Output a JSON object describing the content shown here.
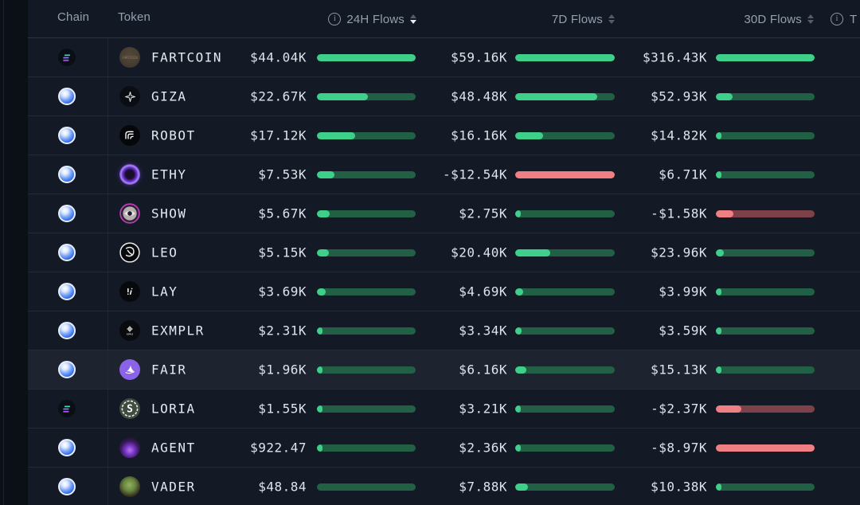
{
  "header": {
    "chain_label": "Chain",
    "token_label": "Token",
    "flows_24h_label": "24H Flows",
    "flows_7d_label": "7D Flows",
    "flows_30d_label": "30D Flows",
    "right_partial_label": "T",
    "sort_active_column": "24H Flows",
    "sort_direction": "desc"
  },
  "icons": {
    "info_glyph": "i"
  },
  "colors": {
    "positive_fill": "#3ecf8a",
    "positive_track": "#216044",
    "negative_fill": "#ef7f82",
    "negative_track": "#7c4149",
    "row_background": "#131a25",
    "row_highlight": "#1d2430",
    "header_text": "#94a0ae",
    "value_text": "#dde4ec"
  },
  "rows": [
    {
      "chain_icon": "solana",
      "token": "FARTCOIN",
      "token_icon": "fartcoin",
      "highlighted": false,
      "flows_24h": {
        "value": "$44.04K",
        "pct": 100,
        "negative": false
      },
      "flows_7d": {
        "value": "$59.16K",
        "pct": 100,
        "negative": false
      },
      "flows_30d": {
        "value": "$316.43K",
        "pct": 100,
        "negative": false
      }
    },
    {
      "chain_icon": "blue-sphere",
      "token": "GIZA",
      "token_icon": "giza",
      "highlighted": false,
      "flows_24h": {
        "value": "$22.67K",
        "pct": 52,
        "negative": false
      },
      "flows_7d": {
        "value": "$48.48K",
        "pct": 82,
        "negative": false
      },
      "flows_30d": {
        "value": "$52.93K",
        "pct": 17,
        "negative": false
      }
    },
    {
      "chain_icon": "blue-sphere",
      "token": "ROBOT",
      "token_icon": "robot",
      "highlighted": false,
      "flows_24h": {
        "value": "$17.12K",
        "pct": 39,
        "negative": false
      },
      "flows_7d": {
        "value": "$16.16K",
        "pct": 28,
        "negative": false
      },
      "flows_30d": {
        "value": "$14.82K",
        "pct": 5,
        "negative": false
      }
    },
    {
      "chain_icon": "blue-sphere",
      "token": "ETHY",
      "token_icon": "ethy",
      "highlighted": false,
      "flows_24h": {
        "value": "$7.53K",
        "pct": 18,
        "negative": false
      },
      "flows_7d": {
        "value": "-$12.54K",
        "pct": 100,
        "negative": true
      },
      "flows_30d": {
        "value": "$6.71K",
        "pct": 3,
        "negative": false
      }
    },
    {
      "chain_icon": "blue-sphere",
      "token": "SHOW",
      "token_icon": "show",
      "highlighted": false,
      "flows_24h": {
        "value": "$5.67K",
        "pct": 13,
        "negative": false
      },
      "flows_7d": {
        "value": "$2.75K",
        "pct": 5,
        "negative": false
      },
      "flows_30d": {
        "value": "-$1.58K",
        "pct": 18,
        "negative": true
      }
    },
    {
      "chain_icon": "blue-sphere",
      "token": "LEO",
      "token_icon": "leo",
      "highlighted": false,
      "flows_24h": {
        "value": "$5.15K",
        "pct": 12,
        "negative": false
      },
      "flows_7d": {
        "value": "$20.40K",
        "pct": 35,
        "negative": false
      },
      "flows_30d": {
        "value": "$23.96K",
        "pct": 8,
        "negative": false
      }
    },
    {
      "chain_icon": "blue-sphere",
      "token": "LAY",
      "token_icon": "lay",
      "highlighted": false,
      "flows_24h": {
        "value": "$3.69K",
        "pct": 9,
        "negative": false
      },
      "flows_7d": {
        "value": "$4.69K",
        "pct": 8,
        "negative": false
      },
      "flows_30d": {
        "value": "$3.99K",
        "pct": 2,
        "negative": false
      }
    },
    {
      "chain_icon": "blue-sphere",
      "token": "EXMPLR",
      "token_icon": "exmplr",
      "highlighted": false,
      "flows_24h": {
        "value": "$2.31K",
        "pct": 6,
        "negative": false
      },
      "flows_7d": {
        "value": "$3.34K",
        "pct": 6,
        "negative": false
      },
      "flows_30d": {
        "value": "$3.59K",
        "pct": 2,
        "negative": false
      }
    },
    {
      "chain_icon": "blue-sphere",
      "token": "FAIR",
      "token_icon": "fair",
      "highlighted": true,
      "flows_24h": {
        "value": "$1.96K",
        "pct": 5,
        "negative": false
      },
      "flows_7d": {
        "value": "$6.16K",
        "pct": 11,
        "negative": false
      },
      "flows_30d": {
        "value": "$15.13K",
        "pct": 5,
        "negative": false
      }
    },
    {
      "chain_icon": "solana",
      "token": "LORIA",
      "token_icon": "loria",
      "highlighted": false,
      "flows_24h": {
        "value": "$1.55K",
        "pct": 4,
        "negative": false
      },
      "flows_7d": {
        "value": "$3.21K",
        "pct": 5,
        "negative": false
      },
      "flows_30d": {
        "value": "-$2.37K",
        "pct": 26,
        "negative": true
      }
    },
    {
      "chain_icon": "blue-sphere",
      "token": "AGENT",
      "token_icon": "agent",
      "highlighted": false,
      "flows_24h": {
        "value": "$922.47",
        "pct": 2,
        "negative": false
      },
      "flows_7d": {
        "value": "$2.36K",
        "pct": 4,
        "negative": false
      },
      "flows_30d": {
        "value": "-$8.97K",
        "pct": 100,
        "negative": true
      }
    },
    {
      "chain_icon": "blue-sphere",
      "token": "VADER",
      "token_icon": "vader",
      "highlighted": false,
      "flows_24h": {
        "value": "$48.84",
        "pct": 0,
        "negative": false
      },
      "flows_7d": {
        "value": "$7.88K",
        "pct": 13,
        "negative": false
      },
      "flows_30d": {
        "value": "$10.38K",
        "pct": 4,
        "negative": false
      }
    }
  ]
}
